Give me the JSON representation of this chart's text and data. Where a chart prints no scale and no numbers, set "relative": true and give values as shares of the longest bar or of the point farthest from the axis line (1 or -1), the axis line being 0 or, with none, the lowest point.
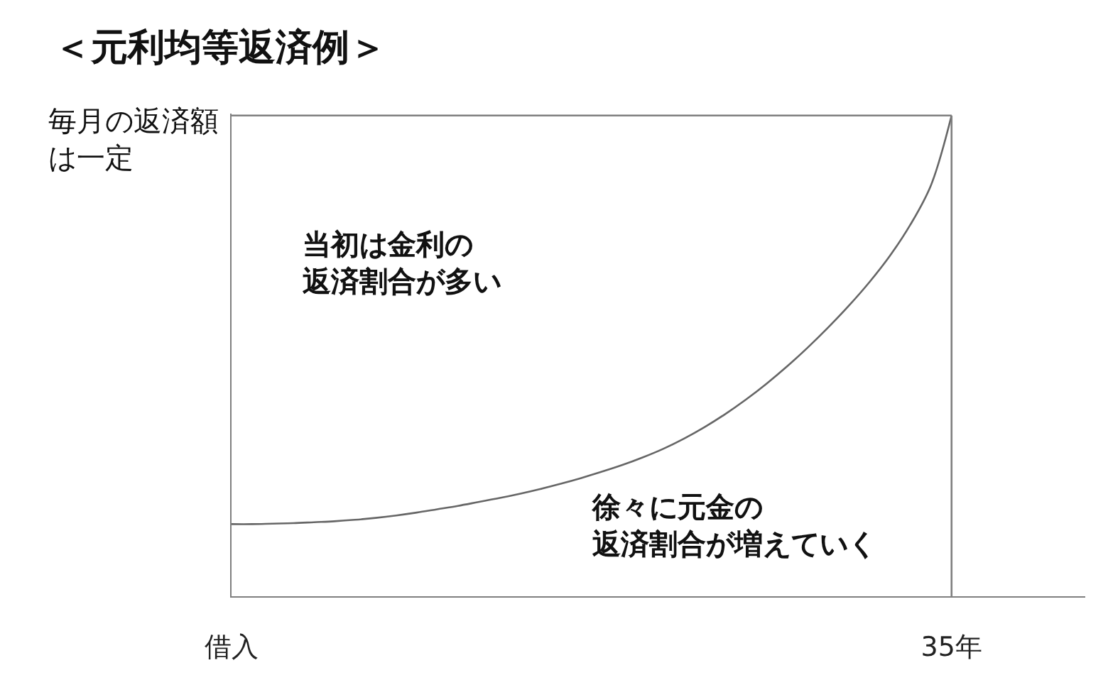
{
  "chart_data": {
    "type": "line",
    "title": "＜元利均等返済例＞",
    "relative": true,
    "categories": [
      "借入",
      null,
      null,
      null,
      null,
      null,
      null,
      null,
      null,
      null,
      null,
      null,
      null,
      null,
      null,
      null,
      null,
      null,
      null,
      null,
      null,
      null,
      null,
      null,
      null,
      null,
      null,
      null,
      null,
      null,
      null,
      null,
      null,
      null,
      null,
      "35年",
      null,
      null,
      null,
      null,
      null,
      null
    ],
    "series": [
      {
        "color": "#7f7f7f",
        "values": [
          1,
          1,
          1,
          1,
          1,
          1,
          1,
          1,
          1,
          1,
          1,
          1,
          1,
          1,
          1,
          1,
          1,
          1,
          1,
          1,
          1,
          1,
          1,
          1,
          1,
          1,
          1,
          1,
          1,
          1,
          1,
          1,
          1,
          1,
          1,
          1,
          null,
          null,
          null,
          null,
          null,
          null
        ]
      },
      {
        "color": "#666666",
        "values": [
          0.15,
          0.15,
          0.151,
          0.152,
          0.154,
          0.156,
          0.159,
          0.163,
          0.168,
          0.174,
          0.181,
          0.188,
          0.196,
          0.204,
          0.213,
          0.223,
          0.234,
          0.246,
          0.259,
          0.273,
          0.289,
          0.307,
          0.328,
          0.352,
          0.379,
          0.409,
          0.442,
          0.478,
          0.517,
          0.559,
          0.604,
          0.653,
          0.708,
          0.773,
          0.855,
          1,
          null,
          null,
          null,
          null,
          null,
          null
        ]
      }
    ],
    "ref_lines": [
      {
        "axis": "x",
        "value": "35年",
        "color": "#7f7f7f"
      }
    ],
    "annotations": [
      "毎月の返済額は一定",
      "当初は金利の返済割合が多い",
      "徐々に元金の返済割合が増えていく"
    ],
    "marker": "none",
    "line_style": "solid"
  }
}
